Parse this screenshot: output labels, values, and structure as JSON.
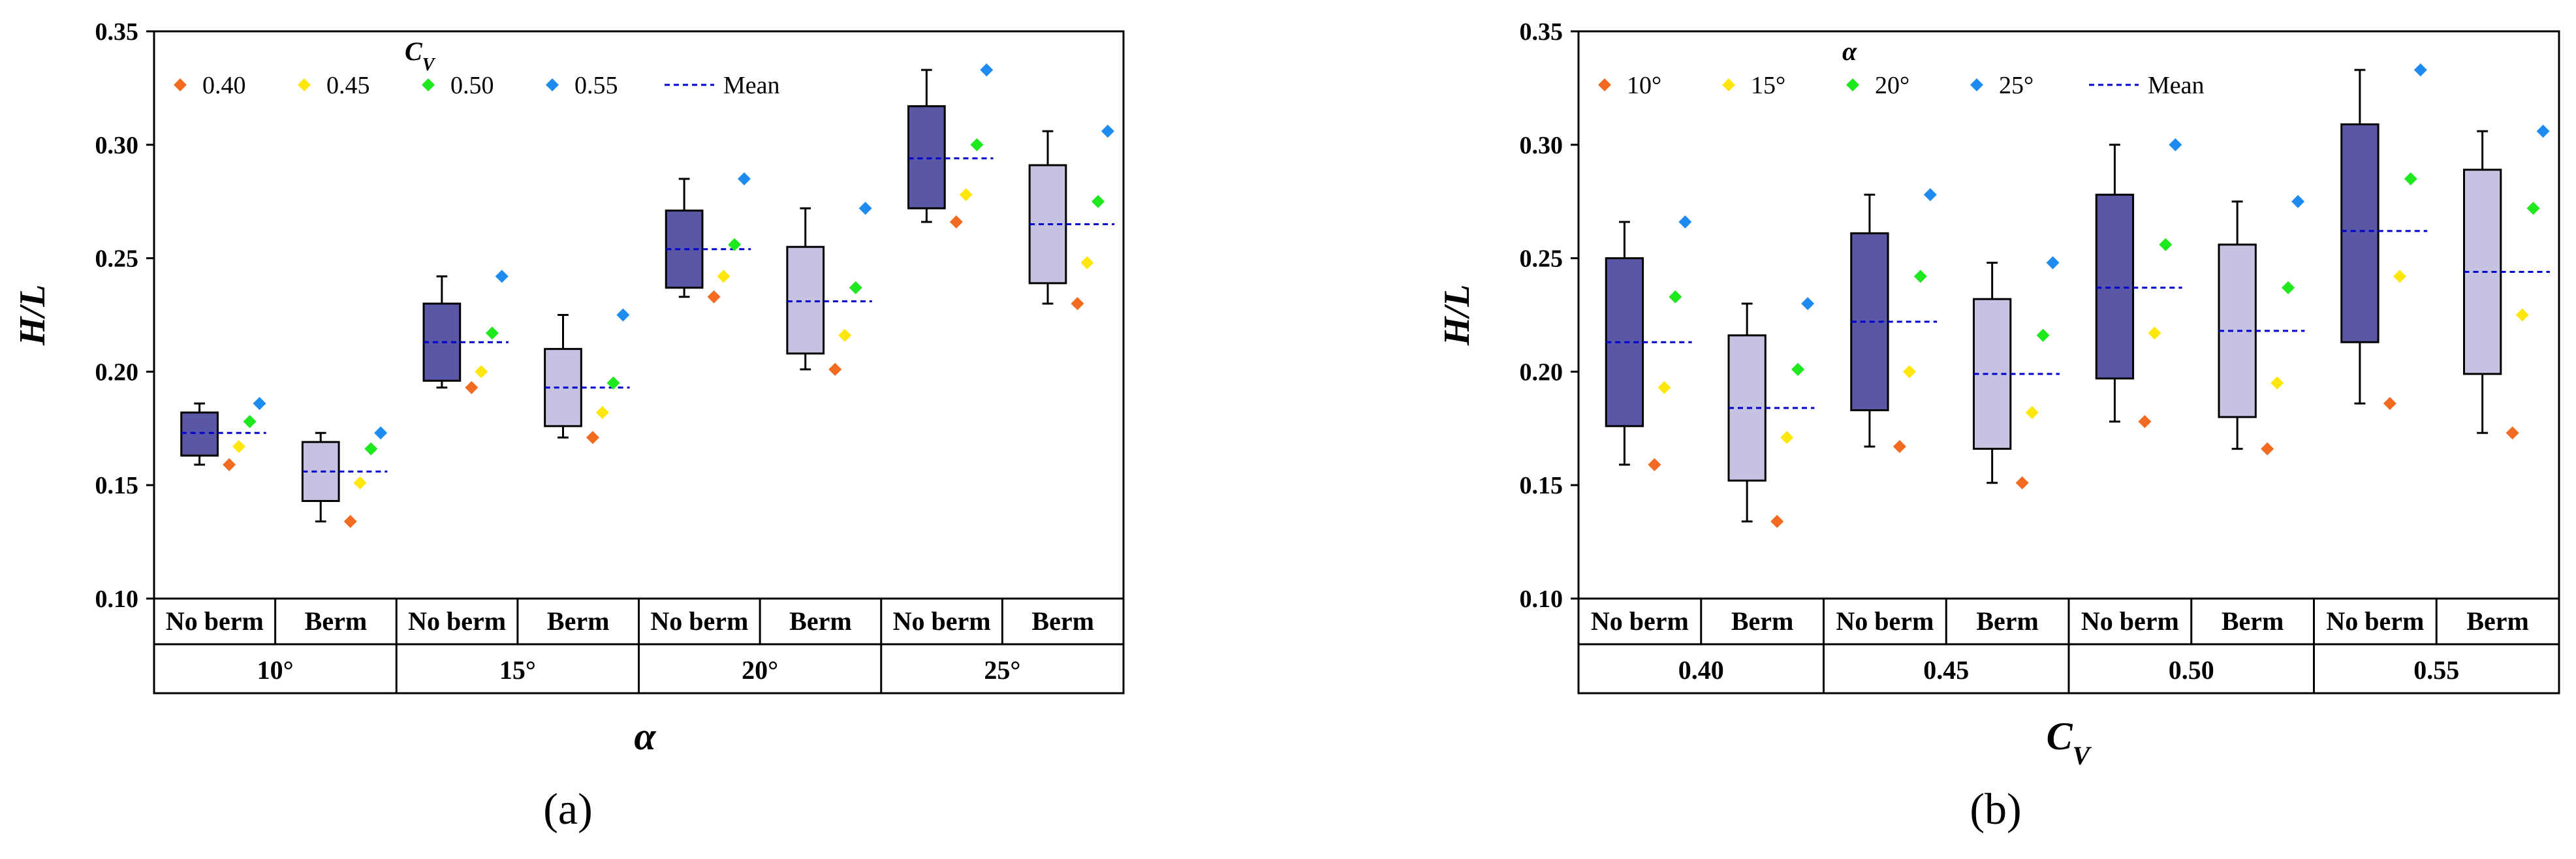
{
  "charts": [
    {
      "type": "box",
      "panel_label": "(a)",
      "ylabel": "H/L",
      "xlabel": "α",
      "ylim": [
        0.1,
        0.35
      ],
      "yticks": [
        "0.10",
        "0.15",
        "0.20",
        "0.25",
        "0.30",
        "0.35"
      ],
      "legend_title": "C",
      "legend_title_sub": "V",
      "legend_items": [
        "0.40",
        "0.45",
        "0.50",
        "0.55",
        "Mean"
      ],
      "groups": [
        {
          "label": "10°",
          "boxes": [
            {
              "sub_label": "No berm",
              "kind": "no_berm",
              "min": 0.159,
              "q1": 0.163,
              "q3": 0.182,
              "max": 0.186,
              "mean": 0.173,
              "points": [
                0.159,
                0.167,
                0.178,
                0.186
              ]
            },
            {
              "sub_label": "Berm",
              "kind": "berm",
              "min": 0.134,
              "q1": 0.143,
              "q3": 0.169,
              "max": 0.173,
              "mean": 0.156,
              "points": [
                0.134,
                0.151,
                0.166,
                0.173
              ]
            }
          ]
        },
        {
          "label": "15°",
          "boxes": [
            {
              "sub_label": "No berm",
              "kind": "no_berm",
              "min": 0.193,
              "q1": 0.196,
              "q3": 0.23,
              "max": 0.242,
              "mean": 0.213,
              "points": [
                0.193,
                0.2,
                0.217,
                0.242
              ]
            },
            {
              "sub_label": "Berm",
              "kind": "berm",
              "min": 0.171,
              "q1": 0.176,
              "q3": 0.21,
              "max": 0.225,
              "mean": 0.193,
              "points": [
                0.171,
                0.182,
                0.195,
                0.225
              ]
            }
          ]
        },
        {
          "label": "20°",
          "boxes": [
            {
              "sub_label": "No berm",
              "kind": "no_berm",
              "min": 0.233,
              "q1": 0.237,
              "q3": 0.271,
              "max": 0.285,
              "mean": 0.254,
              "points": [
                0.233,
                0.242,
                0.256,
                0.285
              ]
            },
            {
              "sub_label": "Berm",
              "kind": "berm",
              "min": 0.201,
              "q1": 0.208,
              "q3": 0.255,
              "max": 0.272,
              "mean": 0.231,
              "points": [
                0.201,
                0.216,
                0.237,
                0.272
              ]
            }
          ]
        },
        {
          "label": "25°",
          "boxes": [
            {
              "sub_label": "No berm",
              "kind": "no_berm",
              "min": 0.266,
              "q1": 0.272,
              "q3": 0.317,
              "max": 0.333,
              "mean": 0.294,
              "points": [
                0.266,
                0.278,
                0.3,
                0.333
              ]
            },
            {
              "sub_label": "Berm",
              "kind": "berm",
              "min": 0.23,
              "q1": 0.239,
              "q3": 0.291,
              "max": 0.306,
              "mean": 0.265,
              "points": [
                0.23,
                0.248,
                0.275,
                0.306
              ]
            }
          ]
        }
      ]
    },
    {
      "type": "box",
      "panel_label": "(b)",
      "ylabel": "H/L",
      "xlabel": "C",
      "xlabel_sub": "V",
      "ylim": [
        0.1,
        0.35
      ],
      "yticks": [
        "0.10",
        "0.15",
        "0.20",
        "0.25",
        "0.30",
        "0.35"
      ],
      "legend_title": "α",
      "legend_title_sub": "",
      "legend_items": [
        "10°",
        "15°",
        "20°",
        "25°",
        "Mean"
      ],
      "groups": [
        {
          "label": "0.40",
          "boxes": [
            {
              "sub_label": "No berm",
              "kind": "no_berm",
              "min": 0.159,
              "q1": 0.176,
              "q3": 0.25,
              "max": 0.266,
              "mean": 0.213,
              "points": [
                0.159,
                0.193,
                0.233,
                0.266
              ]
            },
            {
              "sub_label": "Berm",
              "kind": "berm",
              "min": 0.134,
              "q1": 0.152,
              "q3": 0.216,
              "max": 0.23,
              "mean": 0.184,
              "points": [
                0.134,
                0.171,
                0.201,
                0.23
              ]
            }
          ]
        },
        {
          "label": "0.45",
          "boxes": [
            {
              "sub_label": "No berm",
              "kind": "no_berm",
              "min": 0.167,
              "q1": 0.183,
              "q3": 0.261,
              "max": 0.278,
              "mean": 0.222,
              "points": [
                0.167,
                0.2,
                0.242,
                0.278
              ]
            },
            {
              "sub_label": "Berm",
              "kind": "berm",
              "min": 0.151,
              "q1": 0.166,
              "q3": 0.232,
              "max": 0.248,
              "mean": 0.199,
              "points": [
                0.151,
                0.182,
                0.216,
                0.248
              ]
            }
          ]
        },
        {
          "label": "0.50",
          "boxes": [
            {
              "sub_label": "No berm",
              "kind": "no_berm",
              "min": 0.178,
              "q1": 0.197,
              "q3": 0.278,
              "max": 0.3,
              "mean": 0.237,
              "points": [
                0.178,
                0.217,
                0.256,
                0.3
              ]
            },
            {
              "sub_label": "Berm",
              "kind": "berm",
              "min": 0.166,
              "q1": 0.18,
              "q3": 0.256,
              "max": 0.275,
              "mean": 0.218,
              "points": [
                0.166,
                0.195,
                0.237,
                0.275
              ]
            }
          ]
        },
        {
          "label": "0.55",
          "boxes": [
            {
              "sub_label": "No berm",
              "kind": "no_berm",
              "min": 0.186,
              "q1": 0.213,
              "q3": 0.309,
              "max": 0.333,
              "mean": 0.262,
              "points": [
                0.186,
                0.242,
                0.285,
                0.333
              ]
            },
            {
              "sub_label": "Berm",
              "kind": "berm",
              "min": 0.173,
              "q1": 0.199,
              "q3": 0.289,
              "max": 0.306,
              "mean": 0.244,
              "points": [
                0.173,
                0.225,
                0.272,
                0.306
              ]
            }
          ]
        }
      ]
    }
  ],
  "chart_data": [
    {
      "type": "box",
      "title": "(a)",
      "xlabel": "α",
      "ylabel": "H/L",
      "ylim": [
        0.1,
        0.35
      ],
      "categories": [
        "10° No berm",
        "10° Berm",
        "15° No berm",
        "15° Berm",
        "20° No berm",
        "20° Berm",
        "25° No berm",
        "25° Berm"
      ],
      "legend_title": "C_V",
      "series": [
        {
          "name": "0.40",
          "values": [
            0.159,
            0.134,
            0.193,
            0.171,
            0.233,
            0.201,
            0.266,
            0.23
          ]
        },
        {
          "name": "0.45",
          "values": [
            0.167,
            0.151,
            0.2,
            0.182,
            0.242,
            0.216,
            0.278,
            0.248
          ]
        },
        {
          "name": "0.50",
          "values": [
            0.178,
            0.166,
            0.217,
            0.195,
            0.256,
            0.237,
            0.3,
            0.275
          ]
        },
        {
          "name": "0.55",
          "values": [
            0.186,
            0.173,
            0.242,
            0.225,
            0.285,
            0.272,
            0.333,
            0.306
          ]
        },
        {
          "name": "Mean",
          "values": [
            0.173,
            0.156,
            0.213,
            0.193,
            0.254,
            0.231,
            0.294,
            0.265
          ]
        }
      ]
    },
    {
      "type": "box",
      "title": "(b)",
      "xlabel": "C_V",
      "ylabel": "H/L",
      "ylim": [
        0.1,
        0.35
      ],
      "categories": [
        "0.40 No berm",
        "0.40 Berm",
        "0.45 No berm",
        "0.45 Berm",
        "0.50 No berm",
        "0.50 Berm",
        "0.55 No berm",
        "0.55 Berm"
      ],
      "legend_title": "α",
      "series": [
        {
          "name": "10°",
          "values": [
            0.159,
            0.134,
            0.167,
            0.151,
            0.178,
            0.166,
            0.186,
            0.173
          ]
        },
        {
          "name": "15°",
          "values": [
            0.193,
            0.171,
            0.2,
            0.182,
            0.217,
            0.195,
            0.242,
            0.225
          ]
        },
        {
          "name": "20°",
          "values": [
            0.233,
            0.201,
            0.242,
            0.216,
            0.256,
            0.237,
            0.285,
            0.272
          ]
        },
        {
          "name": "25°",
          "values": [
            0.266,
            0.23,
            0.278,
            0.248,
            0.3,
            0.275,
            0.333,
            0.306
          ]
        },
        {
          "name": "Mean",
          "values": [
            0.213,
            0.184,
            0.222,
            0.199,
            0.237,
            0.218,
            0.262,
            0.244
          ]
        }
      ]
    }
  ],
  "colors": {
    "series": [
      "#f26b21",
      "#ffe70e",
      "#1de91d",
      "#1e8bf0"
    ],
    "mean": "#0000cc",
    "no_berm_fill": "#5a57a6",
    "berm_fill": "#c5c3e1",
    "axis": "#000000"
  }
}
